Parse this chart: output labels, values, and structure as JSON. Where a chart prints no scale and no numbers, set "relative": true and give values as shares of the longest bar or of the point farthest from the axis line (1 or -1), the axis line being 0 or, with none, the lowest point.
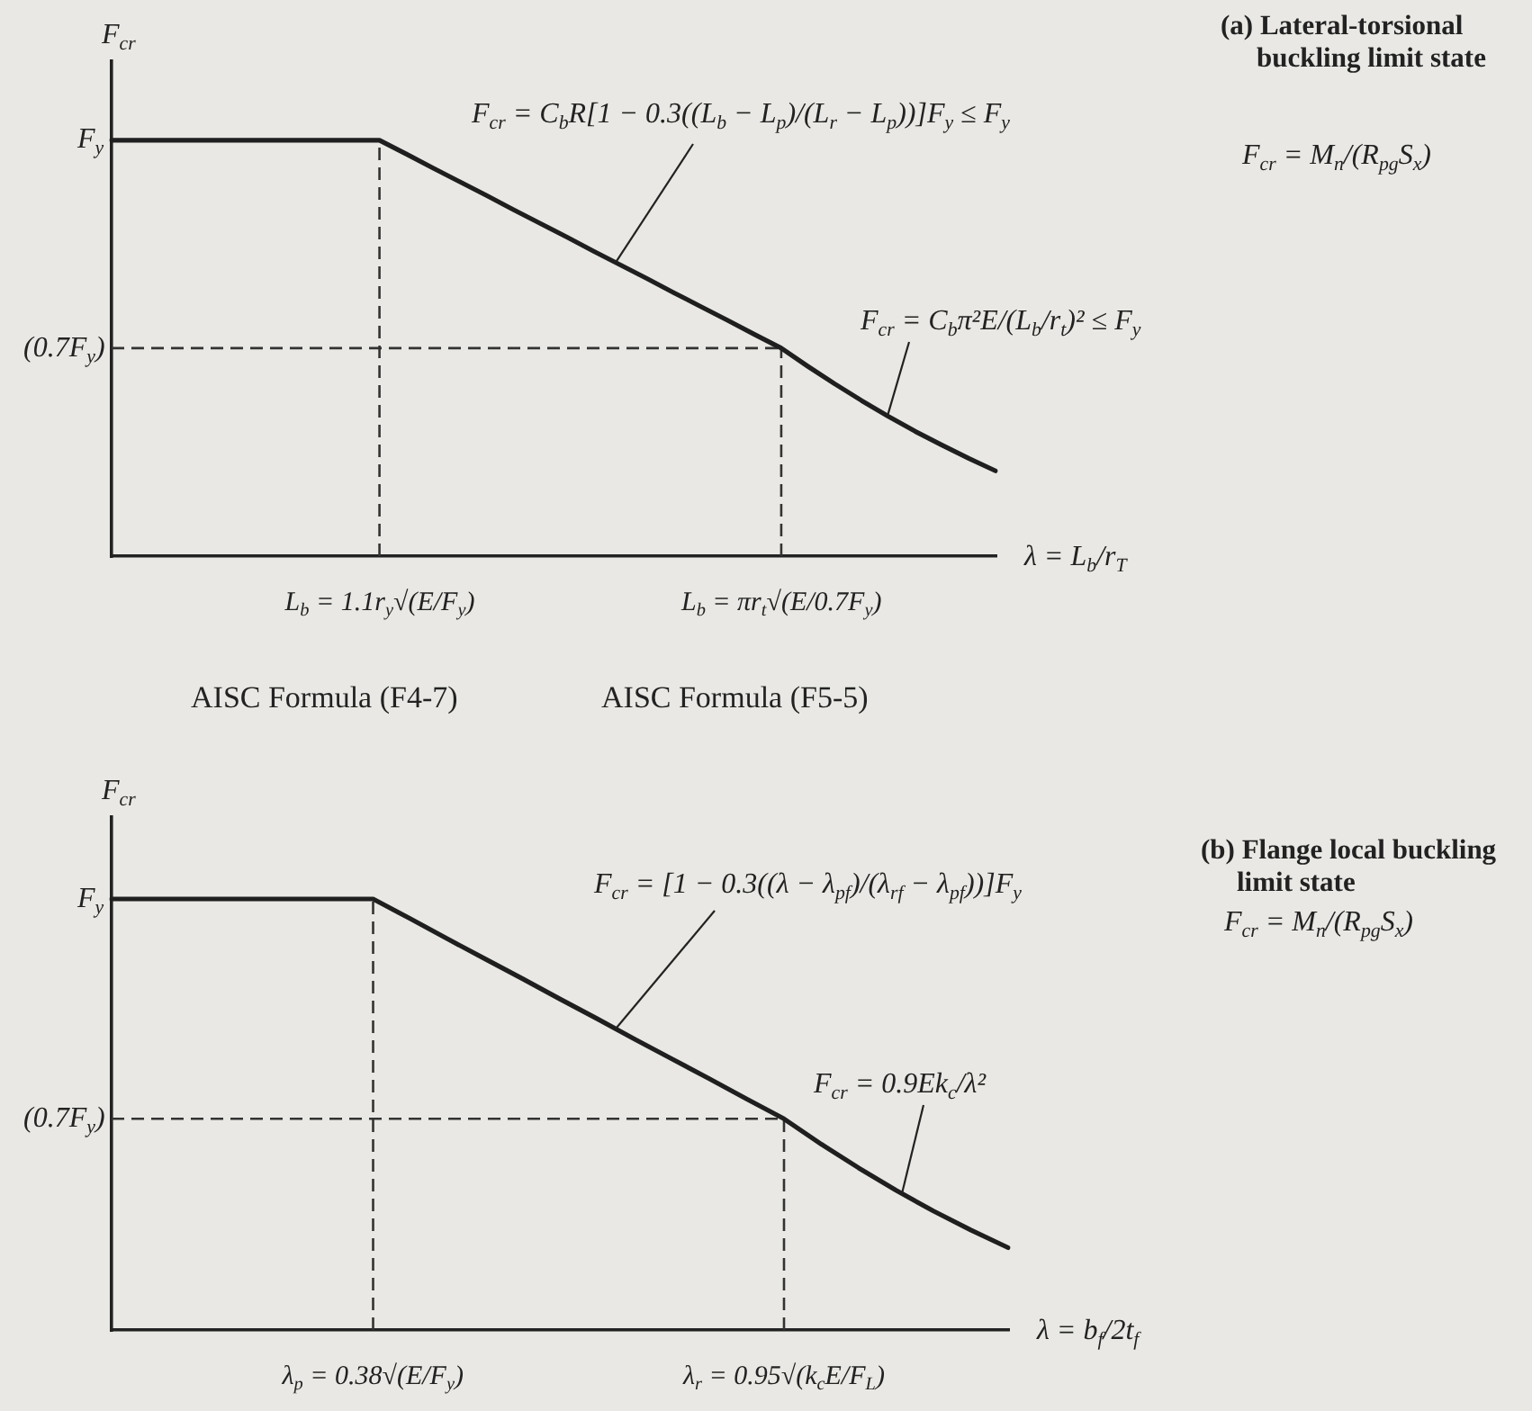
{
  "chart_data": [
    {
      "type": "line",
      "xlabel": "λ = L$_{b}$/r$_{T}$",
      "ylabel": "F$_{cr}$",
      "relative": true,
      "categories": [
        null,
        null,
        null,
        null,
        null,
        null,
        null,
        null,
        null,
        null,
        "L$_{b}$ = 1.1r$_{y}$√(E/F$_{y}$)",
        null,
        null,
        null,
        null,
        null,
        null,
        null,
        null,
        null,
        null,
        null,
        null,
        null,
        null,
        "L$_{b}$ = πr$_{t}$√(E/0.7F$_{y}$)",
        null,
        null,
        null,
        null,
        null,
        null,
        null,
        null
      ],
      "series": [
        {
          "color": "#1f1f1f",
          "values": [
            1,
            1,
            1,
            1,
            1,
            1,
            1,
            1,
            1,
            1,
            1,
            0.967,
            0.933,
            0.9,
            0.867,
            0.833,
            0.8,
            0.767,
            0.733,
            0.7,
            0.667,
            0.633,
            0.6,
            0.567,
            0.533,
            0.5,
            0.456,
            0.414,
            0.374,
            0.336,
            0.3,
            0.267,
            0.235,
            0.205
          ]
        }
      ],
      "ref_lines": [
        {
          "axis": "x",
          "value": "L$_{b}$ = 1.1r$_{y}$√(E/F$_{y}$)",
          "color": "#333333",
          "line_style": "dashed"
        },
        {
          "axis": "x",
          "value": "L$_{b}$ = πr$_{t}$√(E/0.7F$_{y}$)",
          "color": "#333333",
          "line_style": "dashed"
        },
        {
          "axis": "y",
          "value": 0.5,
          "label": "(0.7F$_{y}$)",
          "color": "#333333",
          "line_style": "dashed"
        }
      ],
      "annotations": [
        "F$_{y}$",
        "F$_{cr}$ = C$_{b}$R[1 − 0.3((L$_{b}$ − L$_{p}$)/(L$_{r}$ − L$_{p}$))]F$_{y}$ ≤ F$_{y}$",
        "F$_{cr}$ = C$_{b}$π²E/(L$_{b}$/r$_{t}$)² ≤ F$_{y}$",
        "AISC Formula (F4-7)",
        "AISC Formula (F5-5)",
        "(a) Lateral-torsional buckling limit state",
        "F$_{cr}$ = M$_{n}$/(R$_{pg}$S$_{x}$)"
      ]
    },
    {
      "type": "line",
      "xlabel": "λ = b$_{f}$/2t$_{f}$",
      "ylabel": "F$_{cr}$",
      "relative": true,
      "categories": [
        null,
        null,
        null,
        null,
        null,
        null,
        null,
        "λ$_{p}$ = 0.38√(E/F$_{y}$)",
        null,
        null,
        null,
        null,
        null,
        null,
        null,
        null,
        null,
        null,
        "λ$_{r}$ = 0.95√(k$_{c}$E/F$_{L}$)",
        null,
        null,
        null,
        null,
        null,
        null
      ],
      "series": [
        {
          "color": "#1f1f1f",
          "values": [
            1,
            1,
            1,
            1,
            1,
            1,
            1,
            1,
            0.954,
            0.907,
            0.861,
            0.815,
            0.768,
            0.722,
            0.675,
            0.629,
            0.583,
            0.536,
            0.49,
            0.431,
            0.376,
            0.324,
            0.276,
            0.232,
            0.191
          ]
        }
      ],
      "ref_lines": [
        {
          "axis": "x",
          "value": "λ$_{p}$ = 0.38√(E/F$_{y}$)",
          "color": "#333333",
          "line_style": "dashed"
        },
        {
          "axis": "x",
          "value": "λ$_{r}$ = 0.95√(k$_{c}$E/F$_{L}$)",
          "color": "#333333",
          "line_style": "dashed"
        },
        {
          "axis": "y",
          "value": 0.49,
          "label": "(0.7F$_{y}$)",
          "color": "#333333",
          "line_style": "dashed"
        }
      ],
      "annotations": [
        "F$_{y}$",
        "F$_{cr}$ = [1 − 0.3((λ − λ$_{pf}$)/(λ$_{rf}$ − λ$_{pf}$))]F$_{y}$",
        "F$_{cr}$ = 0.9Ek$_{c}$/λ²",
        "(b) Flange local buckling limit state",
        "F$_{cr}$ = M$_{n}$/(R$_{pg}$S$_{x}$)"
      ]
    }
  ]
}
